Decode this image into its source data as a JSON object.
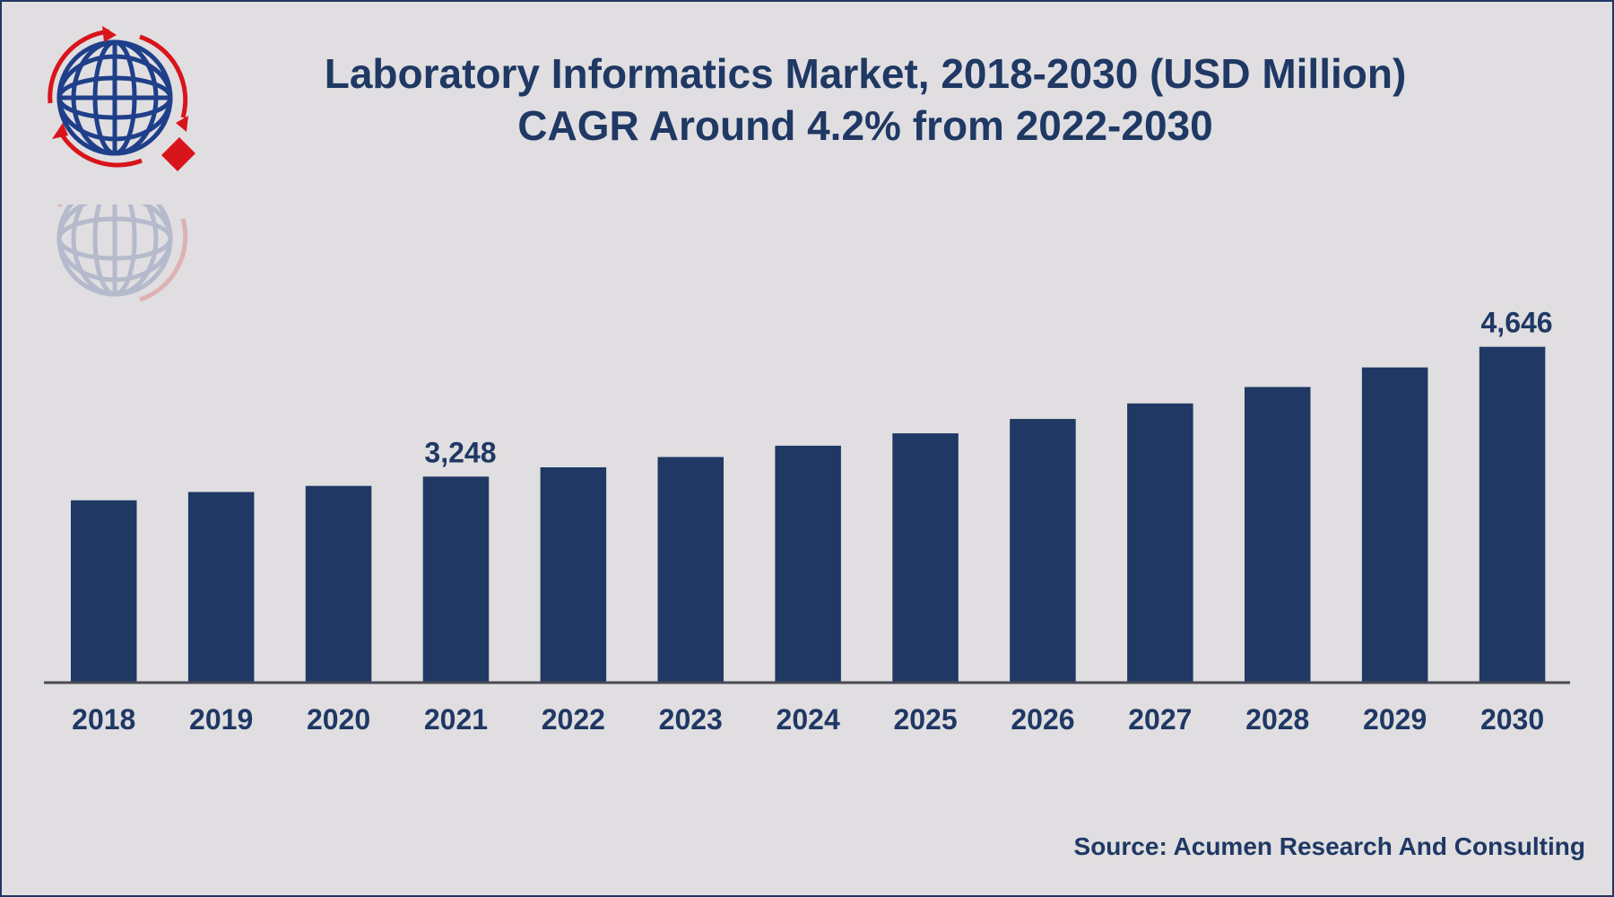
{
  "chart_data": {
    "type": "bar",
    "title": "Laboratory Informatics Market, 2018-2030 (USD Million)",
    "subtitle": "CAGR Around 4.2% from 2022-2030",
    "xlabel": "",
    "ylabel": "USD Million",
    "categories": [
      "2018",
      "2019",
      "2020",
      "2021",
      "2022",
      "2023",
      "2024",
      "2025",
      "2026",
      "2027",
      "2028",
      "2029",
      "2030"
    ],
    "values": [
      2993,
      3082,
      3148,
      3248,
      3348,
      3459,
      3581,
      3714,
      3869,
      4036,
      4213,
      4424,
      4646
    ],
    "data_labels": {
      "2021": "3,248",
      "2030": "4,646"
    },
    "ylim": [
      1029,
      5000
    ],
    "grid": false,
    "legend": "none",
    "bar_color": "#1f3864",
    "source": "Source: Acumen Research And Consulting"
  },
  "colors": {
    "text": "#1f3864",
    "accent": "#d9141b",
    "background": "#e0dee0"
  }
}
